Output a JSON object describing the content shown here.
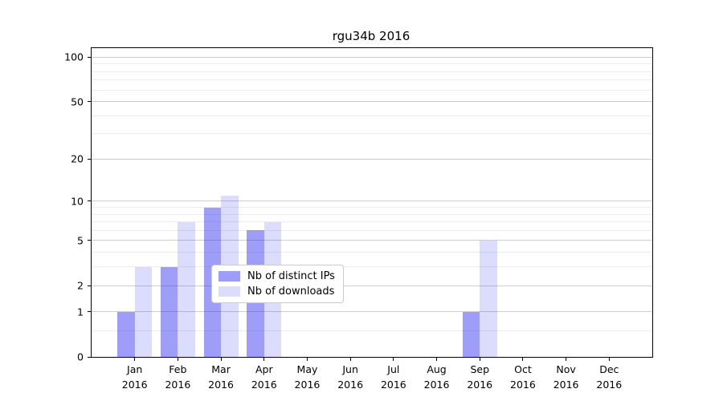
{
  "title": "rgu34b 2016",
  "chart_data": {
    "type": "bar",
    "title": "rgu34b 2016",
    "categories": [
      "Jan",
      "Feb",
      "Mar",
      "Apr",
      "May",
      "Jun",
      "Jul",
      "Aug",
      "Sep",
      "Oct",
      "Nov",
      "Dec"
    ],
    "year": "2016",
    "series": [
      {
        "name": "Nb of distinct IPs",
        "color": "rgba(40,40,240,0.45)",
        "color_hex_on_white": "#9e9ef8",
        "values": [
          1,
          3,
          9,
          6,
          0,
          0,
          0,
          0,
          1,
          0,
          0,
          0
        ]
      },
      {
        "name": "Nb of downloads",
        "color": "rgba(40,40,240,0.16)",
        "color_hex_on_white": "#dcdcfc",
        "values": [
          3,
          7,
          11,
          7,
          0,
          0,
          0,
          0,
          5,
          0,
          0,
          0
        ]
      }
    ],
    "xlabel": "",
    "ylabel": "",
    "yscale": "log1p",
    "ylim": [
      0,
      115
    ],
    "y_ticks": [
      0,
      1,
      2,
      5,
      10,
      20,
      50,
      100
    ],
    "y_minor_ticks": [
      0.5,
      3,
      4,
      6,
      7,
      8,
      9,
      30,
      40,
      60,
      70,
      80,
      90
    ],
    "grid": true,
    "bar_group_width": 0.8,
    "legend_position": "lower center",
    "colors": {
      "grid_major": "#cdcdcd",
      "grid_minor": "#ececec",
      "spine": "#000000",
      "text": "#000000"
    }
  }
}
